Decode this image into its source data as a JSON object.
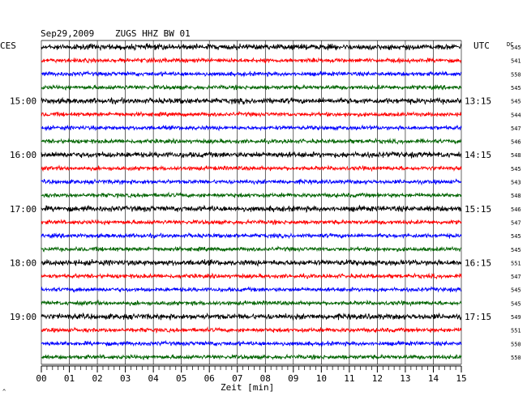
{
  "header": {
    "date": "Sep29,2009",
    "station": "ZUGS HHZ BW 01",
    "tz_left": "CES",
    "tz_right": "UTC",
    "dc_label": "DC"
  },
  "colors": {
    "traces": [
      "#000000",
      "#ff0000",
      "#0000ff",
      "#006400"
    ],
    "grid": "#000000",
    "background": "#ffffff"
  },
  "chart_data": {
    "type": "line",
    "title": "",
    "xlabel": "Zeit [min]",
    "xlim": [
      0,
      15
    ],
    "x_ticks": [
      "00",
      "01",
      "02",
      "03",
      "04",
      "05",
      "06",
      "07",
      "08",
      "09",
      "10",
      "11",
      "12",
      "13",
      "14",
      "15"
    ],
    "grid": true,
    "rows": 24,
    "left_hour_labels": [
      {
        "row": 4,
        "label": "15:00"
      },
      {
        "row": 8,
        "label": "16:00"
      },
      {
        "row": 12,
        "label": "17:00"
      },
      {
        "row": 16,
        "label": "18:00"
      },
      {
        "row": 20,
        "label": "19:00"
      }
    ],
    "right_hour_labels": [
      {
        "row": 4,
        "label": "13:15"
      },
      {
        "row": 8,
        "label": "14:15"
      },
      {
        "row": 12,
        "label": "15:15"
      },
      {
        "row": 16,
        "label": "16:15"
      },
      {
        "row": 20,
        "label": "17:15"
      }
    ],
    "dc_offsets": [
      "545",
      "541",
      "550",
      "545",
      "545",
      "544",
      "547",
      "546",
      "548",
      "545",
      "543",
      "548",
      "546",
      "547",
      "545",
      "545",
      "551",
      "547",
      "545",
      "545",
      "549",
      "551",
      "550",
      "550"
    ]
  }
}
